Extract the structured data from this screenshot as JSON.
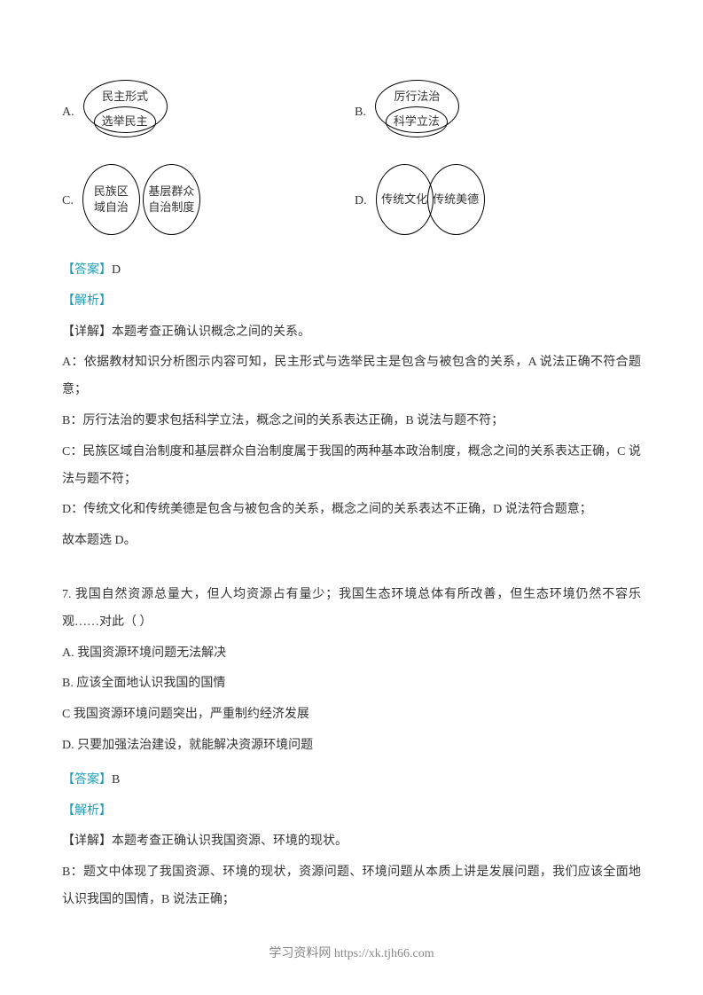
{
  "options": {
    "a": {
      "label": "A.",
      "outer": "民主形式",
      "inner": "选举民主"
    },
    "b": {
      "label": "B.",
      "outer": "厉行法治",
      "inner": "科学立法"
    },
    "c": {
      "label": "C.",
      "left": "民族区\n域自治",
      "right": "基层群众\n自治制度"
    },
    "d": {
      "label": "D.",
      "left": "传统文化",
      "right": "传统美德"
    }
  },
  "answer6": {
    "prefix": "【答案】",
    "letter": "D"
  },
  "analysis6": {
    "label": "【解析】",
    "detail_label": "【详解】本题考查正确认识概念之间的关系。",
    "a": "A：依据教材知识分析图示内容可知，民主形式与选举民主是包含与被包含的关系，A 说法正确不符合题意；",
    "b": "B：厉行法治的要求包括科学立法，概念之间的关系表达正确，B 说法与题不符；",
    "c": "C：民族区域自治制度和基层群众自治制度属于我国的两种基本政治制度，概念之间的关系表达正确，C 说法与题不符；",
    "d": "D：传统文化和传统美德是包含与被包含的关系，概念之间的关系表达不正确，D 说法符合题意；",
    "conclusion": "故本题选 D。"
  },
  "q7": {
    "stem": "7. 我国自然资源总量大，但人均资源占有量少；我国生态环境总体有所改善，但生态环境仍然不容乐观……对此（    ）",
    "choices": {
      "a": "A. 我国资源环境问题无法解决",
      "b": "B. 应该全面地认识我国的国情",
      "c": "C  我国资源环境问题突出，严重制约经济发展",
      "d": "D. 只要加强法治建设，就能解决资源环境问题"
    }
  },
  "answer7": {
    "prefix": "【答案】",
    "letter": "B"
  },
  "analysis7": {
    "label": "【解析】",
    "detail_label": "【详解】本题考查正确认识我国资源、环境的现状。",
    "b": "B：题文中体现了我国资源、环境的现状，资源问题、环境问题从本质上讲是发展问题，我们应该全面地认识我国的国情，B 说法正确；"
  },
  "footer": "学习资料网 https://xk.tjh66.com",
  "colors": {
    "link": "#1e9eb8",
    "text": "#333333",
    "footer": "#888888"
  }
}
